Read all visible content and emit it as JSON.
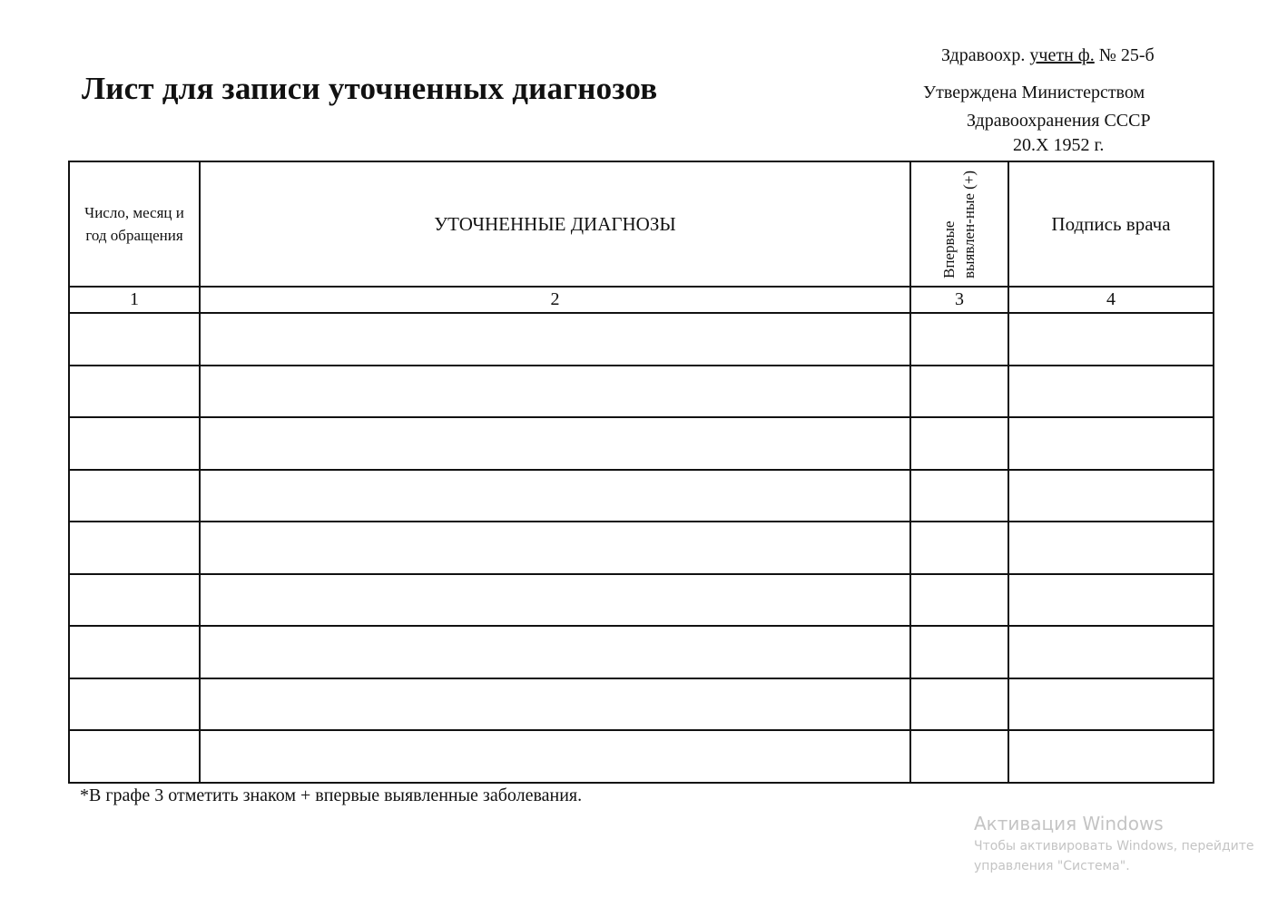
{
  "form": {
    "title": "Лист для записи уточненных диагнозов",
    "form_code_prefix": "Здравоохр.",
    "form_code_underlined": "учетн ф.",
    "form_code_number": "№ 25-б",
    "approved_line1": "Утверждена Министерством",
    "approved_line2": "Здравоохранения СССР",
    "approved_date": "20.X 1952 г."
  },
  "table": {
    "columns": [
      {
        "header": "Число, месяц и год обращения",
        "number": "1"
      },
      {
        "header": "УТОЧНЕННЫЕ ДИАГНОЗЫ",
        "number": "2"
      },
      {
        "header": "Впервые выявлен-ные (+)",
        "number": "3"
      },
      {
        "header": "Подпись врача",
        "number": "4"
      }
    ],
    "empty_rows": 9
  },
  "footnote": "*В графе 3 отметить знаком + впервые выявленные заболевания.",
  "watermark": {
    "title": "Активация Windows",
    "line1": "Чтобы активировать Windows, перейдите",
    "line2": "управления \"Система\"."
  }
}
